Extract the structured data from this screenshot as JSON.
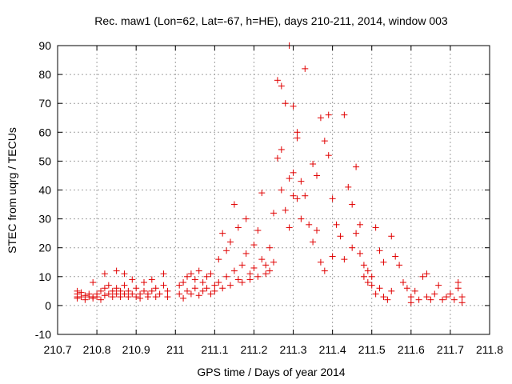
{
  "chart_data": {
    "type": "scatter",
    "title": "Rec. maw1 (Lon=62, Lat=-67, h=HE), days 210-211, 2014, window 003",
    "xlabel": "GPS time / Days of year 2014",
    "ylabel": "STEC from uqrg / TECUs",
    "xlim": [
      210.7,
      211.8
    ],
    "ylim": [
      -10,
      90
    ],
    "x_ticks": [
      "210.7",
      "210.8",
      "210.9",
      "211",
      "211.1",
      "211.2",
      "211.3",
      "211.4",
      "211.5",
      "211.6",
      "211.7",
      "211.8"
    ],
    "y_ticks": [
      "-10",
      "0",
      "10",
      "20",
      "30",
      "40",
      "50",
      "60",
      "70",
      "80",
      "90"
    ],
    "grid": true,
    "marker": "+",
    "color": "#e00000",
    "series": [
      {
        "name": "STEC",
        "points": [
          [
            210.75,
            5
          ],
          [
            210.75,
            4
          ],
          [
            210.75,
            3
          ],
          [
            210.75,
            2.5
          ],
          [
            210.76,
            4.5
          ],
          [
            210.76,
            3
          ],
          [
            210.77,
            3.5
          ],
          [
            210.77,
            2
          ],
          [
            210.78,
            4
          ],
          [
            210.78,
            3
          ],
          [
            210.79,
            3
          ],
          [
            210.79,
            2.5
          ],
          [
            210.79,
            8
          ],
          [
            210.8,
            4
          ],
          [
            210.8,
            3
          ],
          [
            210.81,
            2
          ],
          [
            210.81,
            5
          ],
          [
            210.82,
            6
          ],
          [
            210.82,
            3.5
          ],
          [
            210.82,
            11
          ],
          [
            210.83,
            7
          ],
          [
            210.83,
            4
          ],
          [
            210.84,
            3
          ],
          [
            210.84,
            5
          ],
          [
            210.85,
            4
          ],
          [
            210.85,
            12
          ],
          [
            210.85,
            6
          ],
          [
            210.86,
            3
          ],
          [
            210.86,
            5
          ],
          [
            210.87,
            4
          ],
          [
            210.87,
            11
          ],
          [
            210.87,
            7
          ],
          [
            210.88,
            3
          ],
          [
            210.88,
            5
          ],
          [
            210.89,
            4
          ],
          [
            210.89,
            9
          ],
          [
            210.9,
            3
          ],
          [
            210.9,
            6
          ],
          [
            210.91,
            4
          ],
          [
            210.91,
            2.5
          ],
          [
            210.92,
            5
          ],
          [
            210.92,
            8
          ],
          [
            210.93,
            3
          ],
          [
            210.93,
            4
          ],
          [
            210.94,
            9
          ],
          [
            210.94,
            5
          ],
          [
            210.95,
            3
          ],
          [
            210.95,
            6
          ],
          [
            210.96,
            4
          ],
          [
            210.97,
            11
          ],
          [
            210.97,
            7
          ],
          [
            210.98,
            5
          ],
          [
            210.98,
            3
          ],
          [
            211.01,
            4
          ],
          [
            211.01,
            7
          ],
          [
            211.02,
            2.5
          ],
          [
            211.02,
            8
          ],
          [
            211.03,
            5
          ],
          [
            211.03,
            10
          ],
          [
            211.04,
            4
          ],
          [
            211.04,
            11
          ],
          [
            211.05,
            6
          ],
          [
            211.05,
            9
          ],
          [
            211.06,
            3.5
          ],
          [
            211.06,
            12
          ],
          [
            211.07,
            5
          ],
          [
            211.07,
            8
          ],
          [
            211.08,
            10
          ],
          [
            211.08,
            6
          ],
          [
            211.09,
            4
          ],
          [
            211.09,
            11
          ],
          [
            211.1,
            7
          ],
          [
            211.1,
            5
          ],
          [
            211.11,
            16
          ],
          [
            211.11,
            8
          ],
          [
            211.12,
            25
          ],
          [
            211.12,
            6
          ],
          [
            211.13,
            19
          ],
          [
            211.13,
            10
          ],
          [
            211.14,
            22
          ],
          [
            211.14,
            7
          ],
          [
            211.15,
            35
          ],
          [
            211.15,
            12
          ],
          [
            211.16,
            27
          ],
          [
            211.16,
            9
          ],
          [
            211.17,
            14
          ],
          [
            211.17,
            8
          ],
          [
            211.18,
            30
          ],
          [
            211.18,
            18
          ],
          [
            211.19,
            11
          ],
          [
            211.19,
            9
          ],
          [
            211.2,
            21
          ],
          [
            211.2,
            13
          ],
          [
            211.21,
            26
          ],
          [
            211.21,
            10
          ],
          [
            211.22,
            39
          ],
          [
            211.22,
            16
          ],
          [
            211.23,
            14
          ],
          [
            211.23,
            11
          ],
          [
            211.24,
            20
          ],
          [
            211.24,
            12
          ],
          [
            211.25,
            32
          ],
          [
            211.25,
            15
          ],
          [
            211.26,
            78
          ],
          [
            211.26,
            51
          ],
          [
            211.27,
            76
          ],
          [
            211.27,
            54
          ],
          [
            211.27,
            40
          ],
          [
            211.28,
            33
          ],
          [
            211.28,
            70
          ],
          [
            211.29,
            90
          ],
          [
            211.29,
            44
          ],
          [
            211.29,
            27
          ],
          [
            211.3,
            69
          ],
          [
            211.3,
            46
          ],
          [
            211.3,
            38
          ],
          [
            211.31,
            60
          ],
          [
            211.31,
            58
          ],
          [
            211.31,
            37
          ],
          [
            211.32,
            43
          ],
          [
            211.32,
            30
          ],
          [
            211.33,
            82
          ],
          [
            211.33,
            38
          ],
          [
            211.34,
            28
          ],
          [
            211.35,
            49
          ],
          [
            211.35,
            22
          ],
          [
            211.36,
            45
          ],
          [
            211.36,
            26
          ],
          [
            211.37,
            65
          ],
          [
            211.37,
            15
          ],
          [
            211.38,
            57
          ],
          [
            211.38,
            12
          ],
          [
            211.39,
            66
          ],
          [
            211.39,
            52
          ],
          [
            211.4,
            37
          ],
          [
            211.4,
            17
          ],
          [
            211.41,
            28
          ],
          [
            211.42,
            24
          ],
          [
            211.43,
            66
          ],
          [
            211.43,
            16
          ],
          [
            211.44,
            41
          ],
          [
            211.45,
            35
          ],
          [
            211.45,
            20
          ],
          [
            211.46,
            48
          ],
          [
            211.46,
            25
          ],
          [
            211.47,
            18
          ],
          [
            211.47,
            28
          ],
          [
            211.48,
            14
          ],
          [
            211.48,
            10
          ],
          [
            211.49,
            12
          ],
          [
            211.49,
            8
          ],
          [
            211.5,
            10
          ],
          [
            211.5,
            7
          ],
          [
            211.51,
            4
          ],
          [
            211.51,
            27
          ],
          [
            211.52,
            6
          ],
          [
            211.52,
            19
          ],
          [
            211.53,
            3
          ],
          [
            211.53,
            15
          ],
          [
            211.54,
            2
          ],
          [
            211.55,
            24
          ],
          [
            211.55,
            5
          ],
          [
            211.56,
            17
          ],
          [
            211.57,
            14
          ],
          [
            211.58,
            8
          ],
          [
            211.59,
            6
          ],
          [
            211.6,
            3
          ],
          [
            211.6,
            1
          ],
          [
            211.61,
            5
          ],
          [
            211.62,
            2
          ],
          [
            211.63,
            10
          ],
          [
            211.64,
            3
          ],
          [
            211.64,
            11
          ],
          [
            211.65,
            2
          ],
          [
            211.66,
            4
          ],
          [
            211.67,
            7
          ],
          [
            211.68,
            2
          ],
          [
            211.69,
            3
          ],
          [
            211.7,
            4
          ],
          [
            211.71,
            2
          ],
          [
            211.72,
            6
          ],
          [
            211.72,
            8
          ],
          [
            211.73,
            3
          ],
          [
            211.73,
            1
          ]
        ]
      }
    ]
  }
}
